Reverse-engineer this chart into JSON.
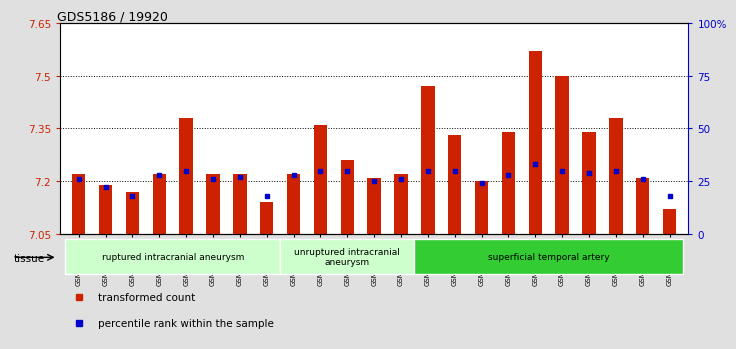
{
  "title": "GDS5186 / 19920",
  "samples": [
    "GSM1306885",
    "GSM1306886",
    "GSM1306887",
    "GSM1306888",
    "GSM1306889",
    "GSM1306890",
    "GSM1306891",
    "GSM1306892",
    "GSM1306893",
    "GSM1306894",
    "GSM1306895",
    "GSM1306896",
    "GSM1306897",
    "GSM1306898",
    "GSM1306899",
    "GSM1306900",
    "GSM1306901",
    "GSM1306902",
    "GSM1306903",
    "GSM1306904",
    "GSM1306905",
    "GSM1306906",
    "GSM1306907"
  ],
  "transformed_count": [
    7.22,
    7.19,
    7.17,
    7.22,
    7.38,
    7.22,
    7.22,
    7.14,
    7.22,
    7.36,
    7.26,
    7.21,
    7.22,
    7.47,
    7.33,
    7.2,
    7.34,
    7.57,
    7.5,
    7.34,
    7.38,
    7.21,
    7.12
  ],
  "percentile_rank": [
    26,
    22,
    18,
    28,
    30,
    26,
    27,
    18,
    28,
    30,
    30,
    25,
    26,
    30,
    30,
    24,
    28,
    33,
    30,
    29,
    30,
    26,
    18
  ],
  "ylim": [
    7.05,
    7.65
  ],
  "yticks": [
    7.05,
    7.2,
    7.35,
    7.5,
    7.65
  ],
  "ytick_labels": [
    "7.05",
    "7.2",
    "7.35",
    "7.5",
    "7.65"
  ],
  "right_yticks": [
    0,
    25,
    50,
    75,
    100
  ],
  "right_ytick_labels": [
    "0",
    "25",
    "50",
    "75",
    "100%"
  ],
  "bar_color": "#CC2200",
  "dot_color": "#0000CC",
  "background_color": "#E0E0E0",
  "plot_bg_color": "#FFFFFF",
  "groups": [
    {
      "label": "ruptured intracranial aneurysm",
      "start": 0,
      "end": 8,
      "color": "#CCFFCC"
    },
    {
      "label": "unruptured intracranial\naneurysm",
      "start": 8,
      "end": 13,
      "color": "#CCFFCC"
    },
    {
      "label": "superficial temporal artery",
      "start": 13,
      "end": 23,
      "color": "#33CC33"
    }
  ],
  "tissue_label": "tissue",
  "legend_items": [
    {
      "label": "transformed count",
      "color": "#CC2200"
    },
    {
      "label": "percentile rank within the sample",
      "color": "#0000CC"
    }
  ]
}
